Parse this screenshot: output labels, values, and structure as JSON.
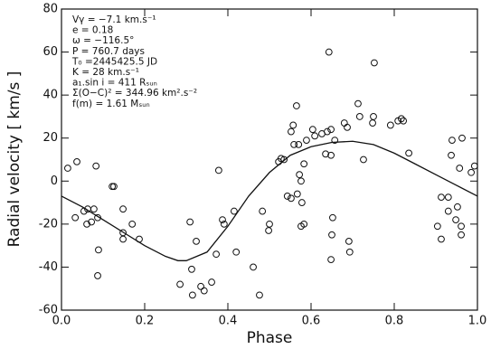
{
  "chart_data": {
    "type": "scatter",
    "xlabel": "Phase",
    "ylabel": "Radial velocity [ km/s ]",
    "annotations": [
      "Vγ = −7.1 km.s⁻¹",
      "e = 0.18",
      "ω = −116.5°",
      "P = 760.7 days",
      "T₀ =2445425.5 JD",
      "K = 28 km.s⁻¹",
      "a₁.sin i = 411 Rₛᵤₙ",
      "Σ(O−C)² = 344.96 km².s⁻²",
      "f(m) = 1.61 Mₛᵤₙ"
    ],
    "xlim": [
      0,
      1
    ],
    "ylim": [
      -60,
      80
    ],
    "xticks": [
      {
        "value": 0,
        "label": "0.0"
      },
      {
        "value": 0.2,
        "label": "0.2"
      },
      {
        "value": 0.4,
        "label": "0.4"
      },
      {
        "value": 0.6,
        "label": "0.6"
      },
      {
        "value": 0.8,
        "label": "0.8"
      },
      {
        "value": 1,
        "label": "1.0"
      }
    ],
    "yticks": [
      -60,
      -40,
      -20,
      0,
      20,
      40,
      60,
      80
    ],
    "color": "#111",
    "series": [
      {
        "type": "scatter",
        "x": [
          0.015,
          0.037,
          0.033,
          0.054,
          0.063,
          0.061,
          0.072,
          0.078,
          0.087,
          0.083,
          0.089,
          0.087,
          0.122,
          0.126,
          0.148,
          0.148,
          0.148,
          0.17,
          0.187,
          0.285,
          0.309,
          0.315,
          0.324,
          0.313,
          0.335,
          0.343,
          0.361,
          0.378,
          0.387,
          0.391,
          0.415,
          0.42,
          0.372,
          0.461,
          0.476,
          0.483,
          0.5,
          0.498,
          0.522,
          0.528,
          0.543,
          0.552,
          0.572,
          0.576,
          0.567,
          0.578,
          0.583,
          0.576,
          0.535,
          0.552,
          0.557,
          0.565,
          0.559,
          0.57,
          0.583,
          0.589,
          0.604,
          0.609,
          0.626,
          0.639,
          0.648,
          0.657,
          0.648,
          0.635,
          0.643,
          0.652,
          0.65,
          0.648,
          0.68,
          0.687,
          0.691,
          0.693,
          0.713,
          0.717,
          0.726,
          0.748,
          0.75,
          0.752,
          0.791,
          0.809,
          0.817,
          0.822,
          0.835,
          0.904,
          0.913,
          0.913,
          0.93,
          0.93,
          0.948,
          0.952,
          0.957,
          0.939,
          0.937,
          0.961,
          0.961,
          0.963,
          0.985,
          0.993
        ],
        "values": [
          6,
          9,
          -17,
          -14,
          -13,
          -20,
          -19,
          -13,
          -17,
          7,
          -32,
          -44,
          -2.5,
          -2.5,
          -13,
          -24,
          -27,
          -20,
          -27,
          -48,
          -19,
          -53,
          -28,
          -41,
          -49,
          -51,
          -47,
          5,
          -18,
          -20,
          -14,
          -33,
          -34,
          -40,
          -53,
          -14,
          -20,
          -23,
          9,
          10.5,
          -7,
          -8,
          3,
          0,
          -6,
          -10,
          -20,
          -21,
          10,
          23,
          26,
          35,
          17,
          17,
          8,
          19,
          24,
          21,
          22,
          23,
          24,
          19,
          12,
          12.6,
          60,
          -17,
          -25,
          -36.5,
          27,
          25,
          -28,
          -33,
          36,
          30,
          10,
          27,
          30,
          55,
          26,
          28,
          29,
          28,
          13,
          -21,
          -27,
          -7.5,
          -7.5,
          -14,
          -18,
          -12,
          6,
          19,
          12,
          -21,
          -25,
          20,
          4,
          7
        ]
      },
      {
        "type": "line",
        "x": [
          0,
          0.05,
          0.1,
          0.15,
          0.2,
          0.25,
          0.28,
          0.3,
          0.35,
          0.4,
          0.45,
          0.5,
          0.55,
          0.6,
          0.65,
          0.7,
          0.75,
          0.8,
          0.85,
          0.9,
          0.95,
          1
        ],
        "values": [
          -7,
          -12,
          -18,
          -24,
          -30,
          -35,
          -37,
          -37,
          -33,
          -21,
          -7,
          4,
          12,
          16,
          18,
          18.5,
          17,
          13,
          8,
          3,
          -2,
          -7
        ]
      }
    ]
  }
}
